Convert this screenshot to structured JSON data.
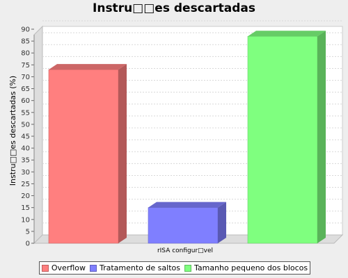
{
  "chart_data": {
    "type": "bar",
    "title": "Instru□□es descartadas",
    "xlabel": "rISA configur□vel",
    "ylabel": "Instru□□es descartadas (%)",
    "ylim": [
      0,
      90
    ],
    "yticks": [
      0,
      5,
      10,
      15,
      20,
      25,
      30,
      35,
      40,
      45,
      50,
      55,
      60,
      65,
      70,
      75,
      80,
      85,
      90
    ],
    "grid": true,
    "legend_position": "bottom",
    "series": [
      {
        "name": "Overflow",
        "values": [
          73
        ],
        "color": "#ff7f7f"
      },
      {
        "name": "Tratamento de saltos",
        "values": [
          15
        ],
        "color": "#7f7fff"
      },
      {
        "name": "Tamanho pequeno dos blocos",
        "values": [
          87
        ],
        "color": "#7fff7f"
      }
    ]
  }
}
